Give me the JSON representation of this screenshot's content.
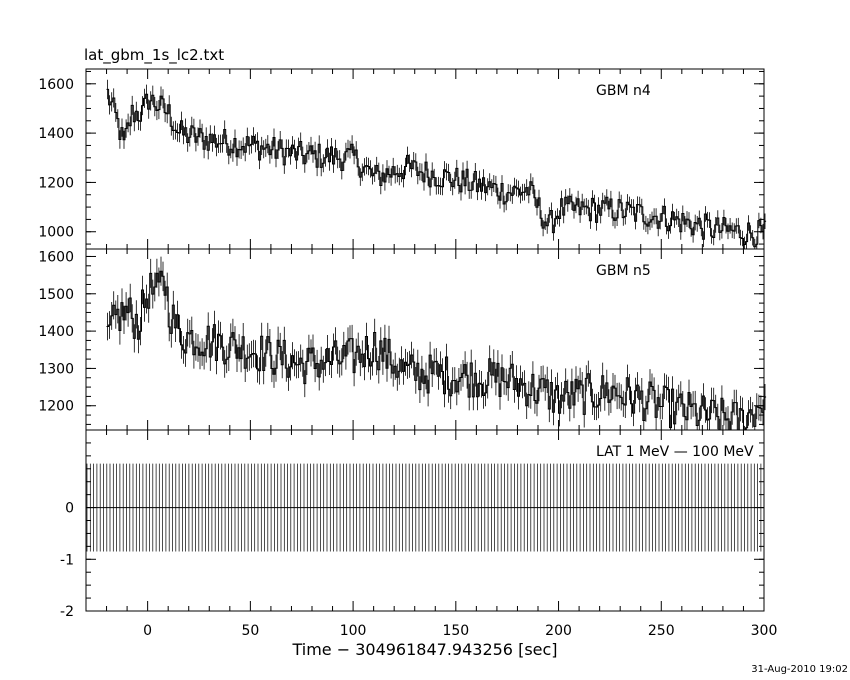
{
  "title": "lat_gbm_1s_lc2.txt",
  "footer_timestamp": "31-Aug-2010 19:02",
  "chart_data": [
    {
      "type": "line",
      "panel": "top",
      "label": "GBM n4",
      "xlim": [
        -30,
        300
      ],
      "ylim": [
        930,
        1660
      ],
      "xticks": [
        0,
        50,
        100,
        150,
        200,
        250,
        300
      ],
      "yticks": [
        1000,
        1200,
        1400,
        1600
      ],
      "style": "histogram with error bars",
      "trend": {
        "x": [
          -20,
          -15,
          -12,
          -8,
          -3,
          0,
          5,
          10,
          15,
          25,
          50,
          75,
          100,
          110,
          125,
          150,
          175,
          185,
          195,
          200,
          225,
          250,
          275,
          300
        ],
        "y": [
          1560,
          1440,
          1350,
          1480,
          1480,
          1540,
          1510,
          1480,
          1400,
          1380,
          1350,
          1310,
          1300,
          1220,
          1260,
          1210,
          1160,
          1170,
          1020,
          1090,
          1090,
          1060,
          1010,
          990
        ]
      }
    },
    {
      "type": "line",
      "panel": "middle",
      "label": "GBM n5",
      "xlim": [
        -30,
        300
      ],
      "ylim": [
        1135,
        1620
      ],
      "xticks": [
        0,
        50,
        100,
        150,
        200,
        250,
        300
      ],
      "yticks": [
        1200,
        1300,
        1400,
        1500,
        1600
      ],
      "style": "histogram with error bars",
      "trend": {
        "x": [
          -20,
          -15,
          -10,
          -5,
          0,
          5,
          7,
          10,
          15,
          25,
          50,
          75,
          100,
          110,
          125,
          150,
          175,
          200,
          225,
          250,
          275,
          290,
          300
        ],
        "y": [
          1380,
          1440,
          1450,
          1420,
          1510,
          1500,
          1560,
          1460,
          1390,
          1380,
          1350,
          1310,
          1330,
          1360,
          1290,
          1280,
          1270,
          1220,
          1240,
          1200,
          1170,
          1160,
          1220
        ]
      }
    },
    {
      "type": "bar",
      "panel": "bottom",
      "label": "LAT 1 MeV — 100 MeV",
      "xlim": [
        -30,
        300
      ],
      "ylim": [
        -2,
        1.5
      ],
      "xticks": [
        0,
        50,
        100,
        150,
        200,
        250,
        300
      ],
      "yticks": [
        -2,
        -1,
        0
      ],
      "value": 0,
      "error": 0.85,
      "bin_width_sec": 1,
      "xlabel": "Time − 304961847.943256 [sec]"
    }
  ]
}
